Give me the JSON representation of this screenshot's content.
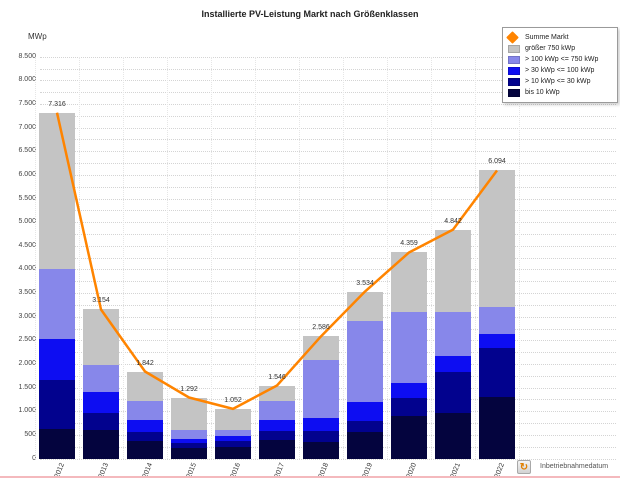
{
  "title": "Installierte PV-Leistung Markt nach Größenklassen",
  "y_unit": "MWp",
  "footer": {
    "label": "Inbetriebnahmedatum",
    "icon": "refresh-clock-icon"
  },
  "colors": {
    "line": "#ff8400",
    "groesser750": "#c4c4c4",
    "kwp100_750": "#8787ea",
    "kwp30_100": "#0d0df2",
    "kwp10_30": "#02028e",
    "bis10": "#04043e",
    "grid": "#d4d4d4",
    "footer_line": "#f4b9bd"
  },
  "legend": [
    {
      "label": "Summe Markt",
      "type": "line",
      "color": "#ff8400"
    },
    {
      "label": "größer 750 kWp",
      "type": "box",
      "color": "#c4c4c4"
    },
    {
      "label": "> 100 kWp <= 750 kWp",
      "type": "box",
      "color": "#8787ea"
    },
    {
      "label": "> 30 kWp <= 100 kWp",
      "type": "box",
      "color": "#0d0df2"
    },
    {
      "label": "> 10 kWp <= 30 kWp",
      "type": "box",
      "color": "#02028e"
    },
    {
      "label": "bis 10 kWp",
      "type": "box",
      "color": "#04043e"
    }
  ],
  "chart_data": {
    "type": "bar",
    "subtype": "stacked-bars-with-line-overlay",
    "title": "Installierte PV-Leistung Markt nach Größenklassen",
    "ylabel": "MWp",
    "xlabel": "Inbetriebnahmedatum",
    "ylim": [
      0,
      8500
    ],
    "ytick_minor_step": 250,
    "ytick_label_step": 500,
    "grid": "dotted-horizontal-every-250",
    "legend_position": "top-right",
    "categories": [
      "2012",
      "2013",
      "2014",
      "2015",
      "2016",
      "2017",
      "2018",
      "2019",
      "2020",
      "2021",
      "2022"
    ],
    "series": [
      {
        "name": "bis 10 kWp",
        "color": "#04043e",
        "values": [
          630,
          595,
          370,
          230,
          236,
          403,
          353,
          560,
          910,
          960,
          1310
        ]
      },
      {
        "name": "> 10 kWp <= 30 kWp",
        "color": "#02028e",
        "values": [
          1040,
          365,
          190,
          90,
          137,
          179,
          229,
          245,
          370,
          870,
          1020
        ]
      },
      {
        "name": "> 30 kWp <= 100 kWp",
        "color": "#0d0df2",
        "values": [
          870,
          455,
          260,
          100,
          98,
          238,
          271,
          382,
          320,
          330,
          300
        ]
      },
      {
        "name": "> 100 kWp <= 750 kWp",
        "color": "#8787ea",
        "values": [
          1460,
          555,
          390,
          190,
          140,
          388,
          1239,
          1718,
          1500,
          940,
          570
        ]
      },
      {
        "name": "größer 750 kWp",
        "color": "#c4c4c4",
        "values": [
          3316,
          1184,
          632,
          682,
          441,
          338,
          494,
          629,
          1259,
          1742,
          2894
        ]
      }
    ],
    "line_series": {
      "name": "Summe Markt",
      "color": "#ff8400",
      "values": [
        7316,
        3154,
        1842,
        1292,
        1052,
        1546,
        2586,
        3534,
        4359,
        4842,
        6094
      ],
      "labels": [
        "7.316",
        "3.154",
        "1.842",
        "1.292",
        "1.052",
        "1.546",
        "2.586",
        "3.534",
        "4.359",
        "4.842",
        "6.094"
      ]
    }
  }
}
